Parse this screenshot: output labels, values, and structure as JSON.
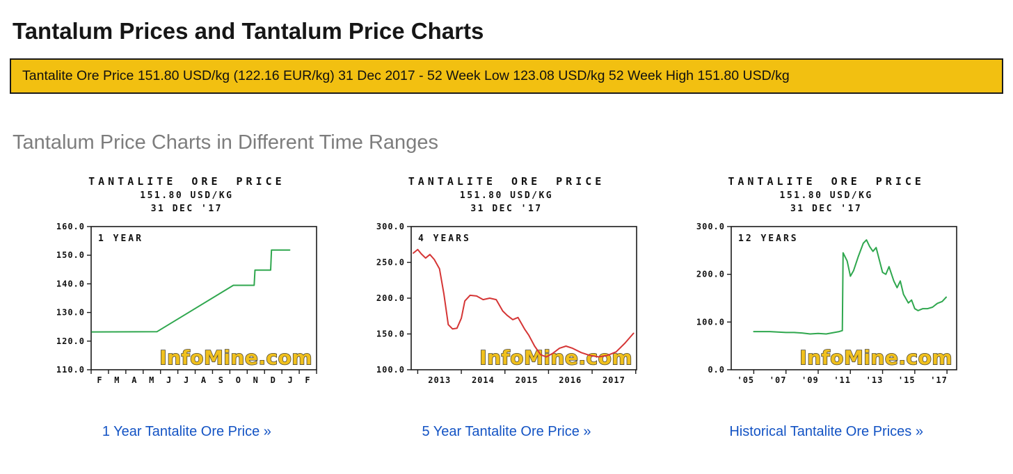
{
  "page": {
    "title": "Tantalum Prices and Tantalum Price Charts",
    "banner_text": "Tantalite Ore Price 151.80 USD/kg (122.16 EUR/kg) 31 Dec 2017 - 52 Week Low 123.08 USD/kg 52 Week High 151.80 USD/kg",
    "section_title": "Tantalum Price Charts in Different Time Ranges"
  },
  "colors": {
    "banner_bg": "#F2C011",
    "banner_border": "#1a1a1a",
    "link": "#1353C4",
    "watermark_fill": "#F0C01E",
    "watermark_outline": "#4a4636",
    "green": "#2FA74E",
    "red": "#D53535"
  },
  "chart_data": [
    {
      "type": "line",
      "title": "TANTALITE ORE PRICE",
      "price_line": "151.80 USD/KG",
      "date_line": "31 DEC '17",
      "range_label": "1 YEAR",
      "line_color": "#2FA74E",
      "xlim": [
        0,
        13
      ],
      "ylim": [
        110,
        160
      ],
      "yticks": [
        110,
        120,
        130,
        140,
        150,
        160
      ],
      "ytick_labels": [
        "110.0",
        "120.0",
        "130.0",
        "140.0",
        "150.0",
        "160.0"
      ],
      "xticks": [
        0,
        1,
        2,
        3,
        4,
        5,
        6,
        7,
        8,
        9,
        10,
        11,
        12,
        13
      ],
      "xlabels": [
        {
          "pos": 0.5,
          "text": "F"
        },
        {
          "pos": 1.5,
          "text": "M"
        },
        {
          "pos": 2.5,
          "text": "A"
        },
        {
          "pos": 3.5,
          "text": "M"
        },
        {
          "pos": 4.5,
          "text": "J"
        },
        {
          "pos": 5.5,
          "text": "J"
        },
        {
          "pos": 6.5,
          "text": "A"
        },
        {
          "pos": 7.5,
          "text": "S"
        },
        {
          "pos": 8.5,
          "text": "O"
        },
        {
          "pos": 9.5,
          "text": "N"
        },
        {
          "pos": 10.5,
          "text": "D"
        },
        {
          "pos": 11.5,
          "text": "J"
        },
        {
          "pos": 12.5,
          "text": "F"
        }
      ],
      "x": [
        0.05,
        3.8,
        8.2,
        9.4,
        9.45,
        10.35,
        10.4,
        11.45
      ],
      "values": [
        123.2,
        123.3,
        139.5,
        139.5,
        144.8,
        144.8,
        151.8,
        151.8
      ],
      "watermark": "InfoMine.com",
      "link_label": "1 Year Tantalite Ore Price »"
    },
    {
      "type": "line",
      "title": "TANTALITE ORE PRICE",
      "price_line": "151.80 USD/KG",
      "date_line": "31 DEC '17",
      "range_label": "4 YEARS",
      "line_color": "#D53535",
      "xlim": [
        2012.85,
        2018.02
      ],
      "ylim": [
        100,
        300
      ],
      "yticks": [
        100,
        150,
        200,
        250,
        300
      ],
      "ytick_labels": [
        "100.0",
        "150.0",
        "200.0",
        "250.0",
        "300.0"
      ],
      "xticks": [
        2013,
        2014,
        2015,
        2016,
        2017,
        2018
      ],
      "xlabels": [
        {
          "pos": 2013.5,
          "text": "2013"
        },
        {
          "pos": 2014.5,
          "text": "2014"
        },
        {
          "pos": 2015.5,
          "text": "2015"
        },
        {
          "pos": 2016.5,
          "text": "2016"
        },
        {
          "pos": 2017.5,
          "text": "2017"
        }
      ],
      "x": [
        2012.9,
        2013.0,
        2013.08,
        2013.18,
        2013.28,
        2013.38,
        2013.5,
        2013.6,
        2013.7,
        2013.8,
        2013.9,
        2014.0,
        2014.08,
        2014.2,
        2014.35,
        2014.5,
        2014.65,
        2014.8,
        2014.95,
        2015.05,
        2015.18,
        2015.3,
        2015.45,
        2015.55,
        2015.68,
        2015.82,
        2015.95,
        2016.1,
        2016.25,
        2016.4,
        2016.55,
        2016.75,
        2016.95,
        2017.15,
        2017.35,
        2017.55,
        2017.75,
        2017.95
      ],
      "values": [
        263,
        268,
        262,
        256,
        261,
        254,
        241,
        206,
        163,
        157,
        158,
        172,
        196,
        204,
        203,
        198,
        200,
        198,
        182,
        176,
        170,
        173,
        157,
        148,
        133,
        121,
        118,
        123,
        130,
        133,
        130,
        124,
        120,
        118,
        120,
        125,
        137,
        151
      ],
      "watermark": "InfoMine.com",
      "link_label": "5 Year Tantalite Ore Price »"
    },
    {
      "type": "line",
      "title": "TANTALITE ORE PRICE",
      "price_line": "151.80 USD/KG",
      "date_line": "31 DEC '17",
      "range_label": "12 YEARS",
      "line_color": "#2FA74E",
      "xlim": [
        2004.6,
        2018.6
      ],
      "ylim": [
        0,
        300
      ],
      "yticks": [
        0,
        100,
        200,
        300
      ],
      "ytick_labels": [
        "0.0",
        "100.0",
        "200.0",
        "300.0"
      ],
      "xticks": [
        2006,
        2008,
        2010,
        2012,
        2014,
        2016,
        2018
      ],
      "xlabels": [
        {
          "pos": 2005.5,
          "text": "'05"
        },
        {
          "pos": 2007.5,
          "text": "'07"
        },
        {
          "pos": 2009.5,
          "text": "'09"
        },
        {
          "pos": 2011.5,
          "text": "'11"
        },
        {
          "pos": 2013.5,
          "text": "'13"
        },
        {
          "pos": 2015.5,
          "text": "'15"
        },
        {
          "pos": 2017.5,
          "text": "'17"
        }
      ],
      "x": [
        2006.0,
        2006.5,
        2007.0,
        2007.5,
        2008.0,
        2008.5,
        2009.0,
        2009.5,
        2010.0,
        2010.5,
        2011.0,
        2011.3,
        2011.5,
        2011.55,
        2011.8,
        2012.0,
        2012.2,
        2012.5,
        2012.8,
        2013.0,
        2013.2,
        2013.4,
        2013.6,
        2013.8,
        2014.0,
        2014.2,
        2014.4,
        2014.7,
        2014.9,
        2015.1,
        2015.3,
        2015.6,
        2015.8,
        2016.0,
        2016.2,
        2016.5,
        2016.8,
        2017.1,
        2017.4,
        2017.7,
        2017.95
      ],
      "values": [
        80,
        80,
        80,
        79,
        78,
        78,
        77,
        75,
        76,
        75,
        78,
        80,
        82,
        245,
        228,
        196,
        208,
        238,
        265,
        272,
        258,
        248,
        256,
        230,
        204,
        200,
        216,
        186,
        172,
        186,
        158,
        140,
        146,
        128,
        124,
        128,
        128,
        131,
        139,
        143,
        152
      ],
      "watermark": "InfoMine.com",
      "link_label": "Historical Tantalite Ore Prices »"
    }
  ]
}
